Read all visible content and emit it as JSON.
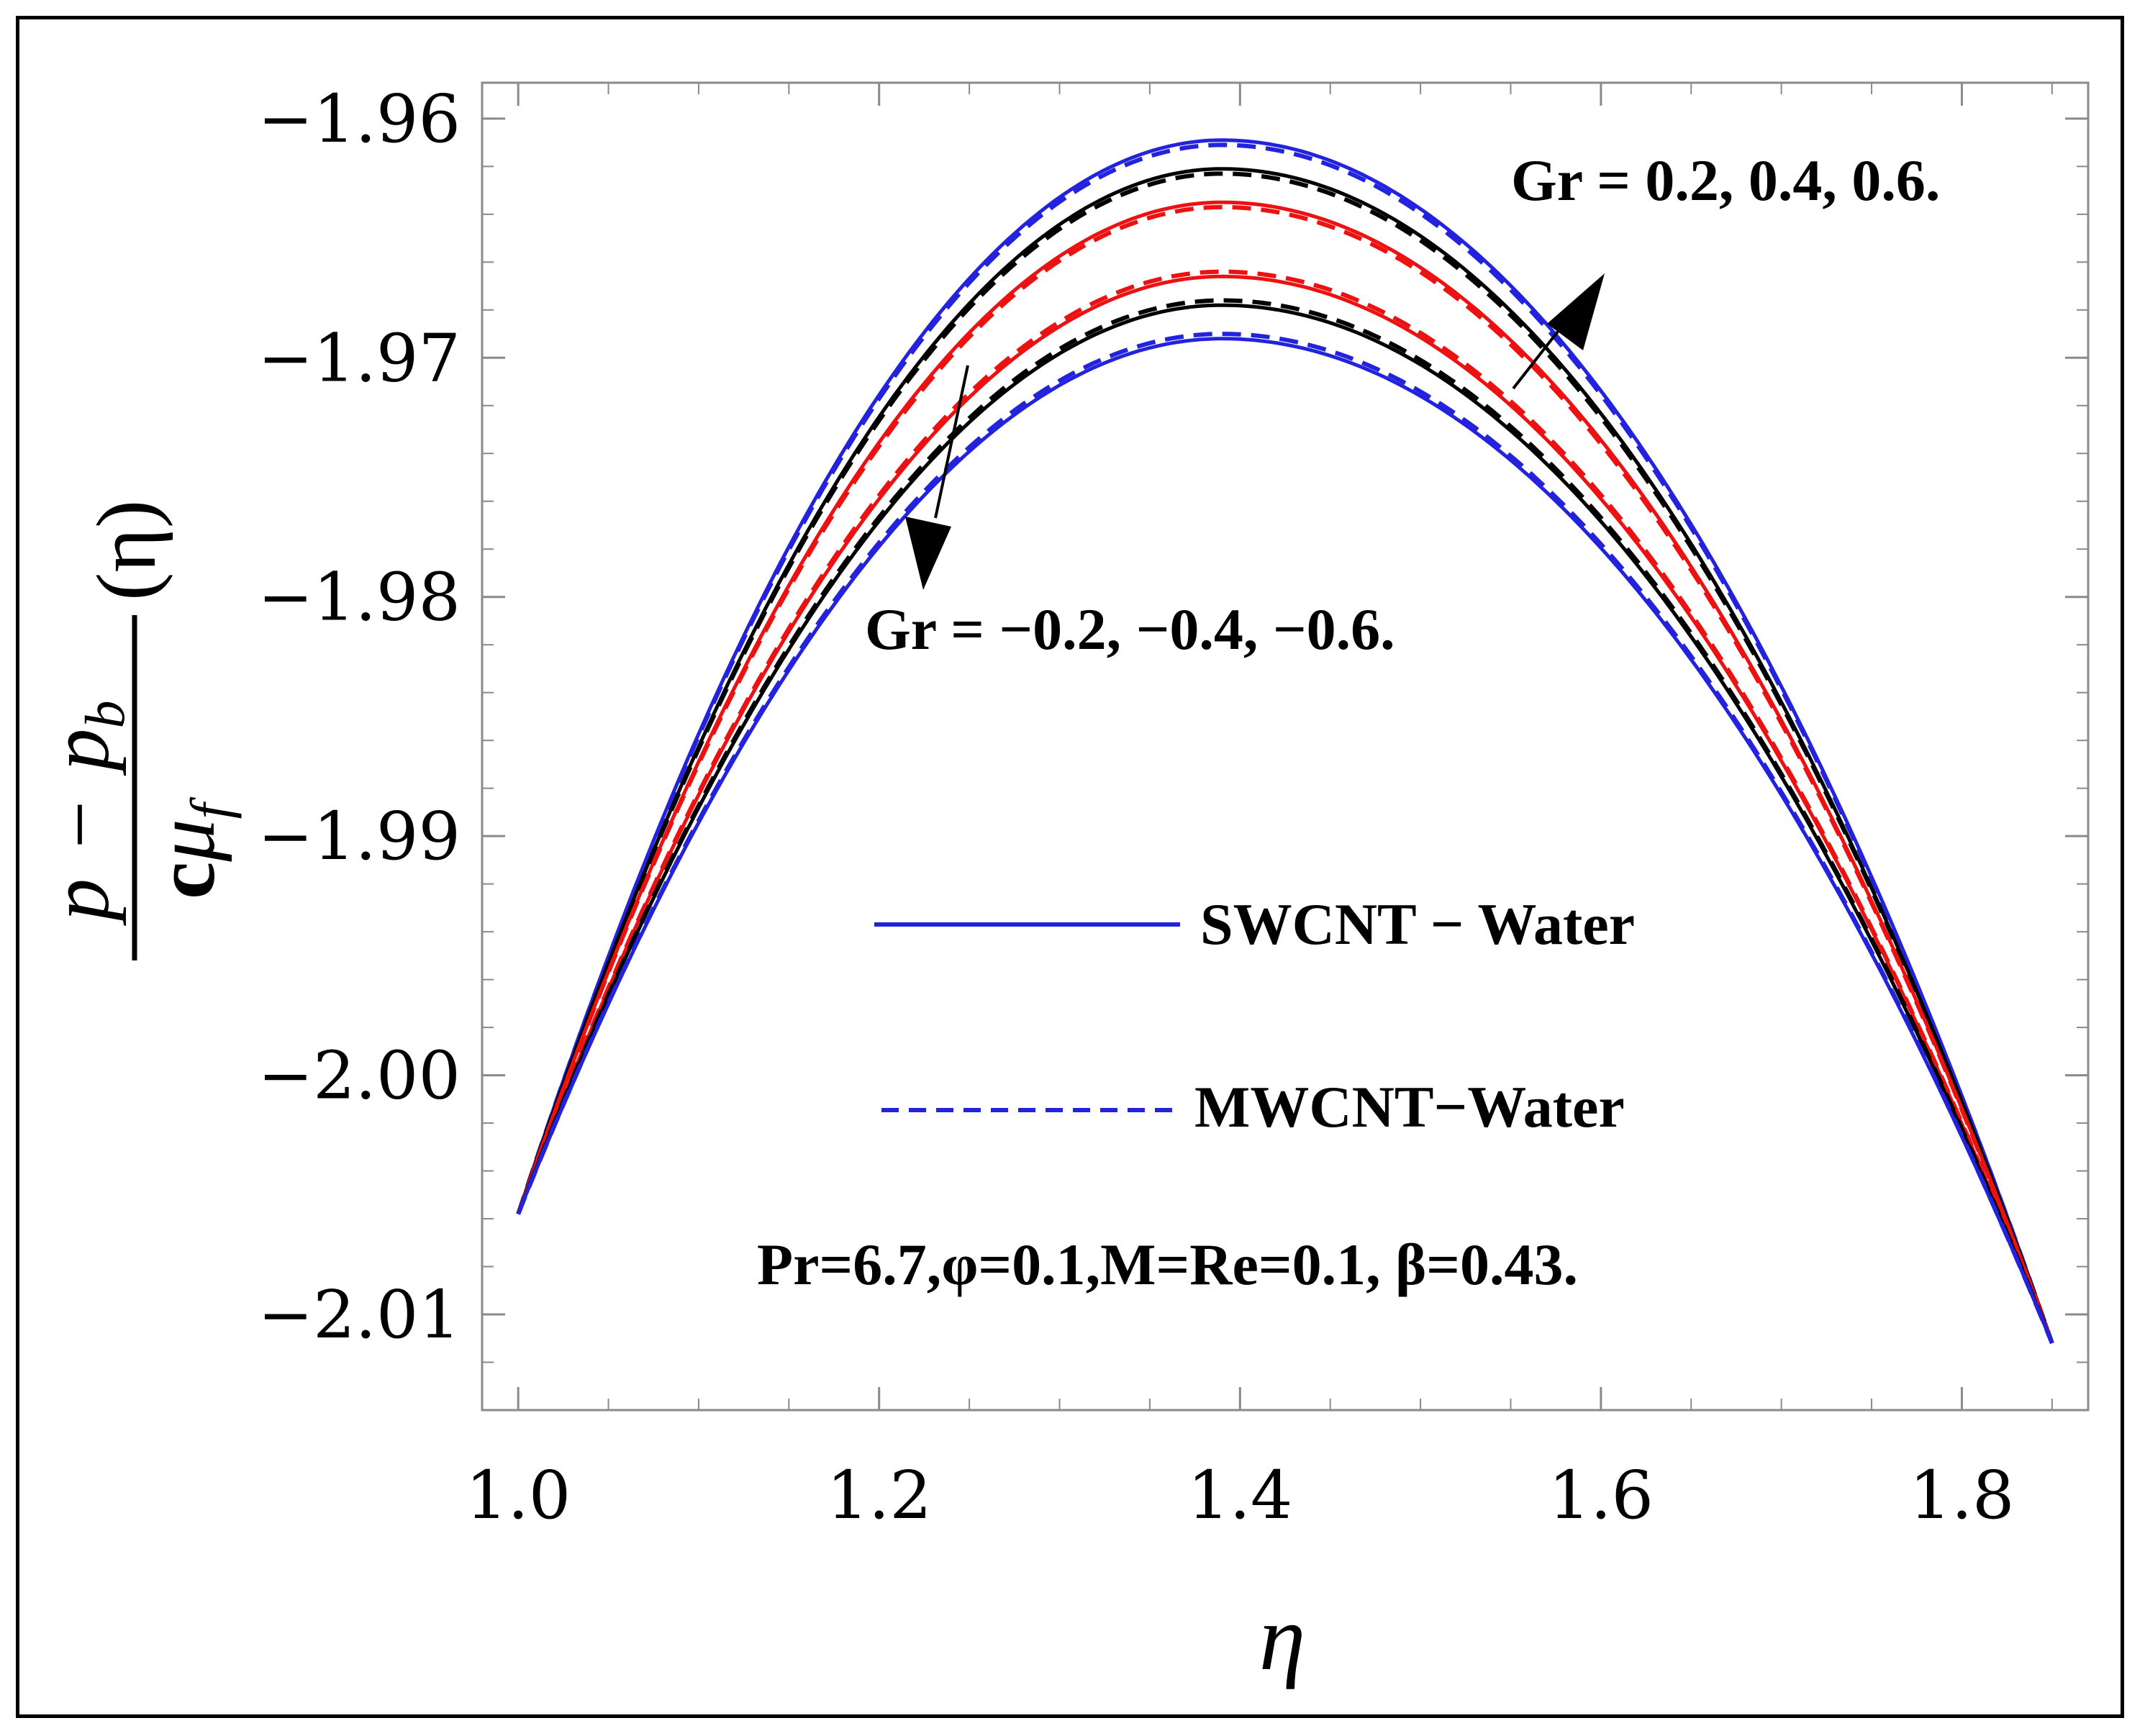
{
  "chart_data": {
    "type": "line",
    "title": "",
    "xlabel": "η",
    "ylabel": "(p − p_b)/(c μ_f) (η)",
    "ylabel_parts": {
      "num_a": "p",
      "num_minus": "−",
      "num_b": "p",
      "num_sub": "b",
      "den_a": "c",
      "den_mu": "μ",
      "den_sub": "f",
      "arg": "(η)"
    },
    "xlim": [
      0.98,
      1.87
    ],
    "ylim": [
      -2.014,
      -1.9585
    ],
    "x_ticks": [
      1.0,
      1.2,
      1.4,
      1.6,
      1.8
    ],
    "x_tick_labels": [
      "1.0",
      "1.2",
      "1.4",
      "1.6",
      "1.8"
    ],
    "y_ticks": [
      -1.96,
      -1.97,
      -1.98,
      -1.99,
      -2.0,
      -2.01
    ],
    "y_tick_labels": [
      "−1.96",
      "−1.97",
      "−1.98",
      "−1.99",
      "−2.00",
      "−2.01"
    ],
    "x_minor_step": 0.05,
    "y_minor_step": 0.002,
    "x_range": [
      1.0,
      1.85
    ],
    "curve_model": "endpoints at η=1.0 (−2.0058) and η=1.85 (−2.0112) with peak at η=1.39",
    "start_value": -2.0058,
    "end_value": -2.0112,
    "peak_x": 1.39,
    "series": [
      {
        "name": "Gr=0.6 SWCNT–Water",
        "group": "SWCNT – Water",
        "Gr": 0.6,
        "color": "#2323dd",
        "style": "solid",
        "peak": -1.9609
      },
      {
        "name": "Gr=0.6 MWCNT–Water",
        "group": "MWCNT−Water",
        "Gr": 0.6,
        "color": "#2323dd",
        "style": "dashed",
        "peak": -1.9611
      },
      {
        "name": "Gr=0.4 SWCNT–Water",
        "group": "SWCNT – Water",
        "Gr": 0.4,
        "color": "#000000",
        "style": "solid",
        "peak": -1.9621
      },
      {
        "name": "Gr=0.4 MWCNT–Water",
        "group": "MWCNT−Water",
        "Gr": 0.4,
        "color": "#000000",
        "style": "dashed",
        "peak": -1.9623
      },
      {
        "name": "Gr=0.2 SWCNT–Water",
        "group": "SWCNT – Water",
        "Gr": 0.2,
        "color": "#ee1111",
        "style": "solid",
        "peak": -1.9635
      },
      {
        "name": "Gr=0.2 MWCNT–Water",
        "group": "MWCNT−Water",
        "Gr": 0.2,
        "color": "#ee1111",
        "style": "dashed",
        "peak": -1.9637
      },
      {
        "name": "Gr=−0.2 SWCNT–Water",
        "group": "SWCNT – Water",
        "Gr": -0.2,
        "color": "#ee1111",
        "style": "solid",
        "peak": -1.9666
      },
      {
        "name": "Gr=−0.2 MWCNT–Water",
        "group": "MWCNT−Water",
        "Gr": -0.2,
        "color": "#ee1111",
        "style": "dashed",
        "peak": -1.9664
      },
      {
        "name": "Gr=−0.4 SWCNT–Water",
        "group": "SWCNT – Water",
        "Gr": -0.4,
        "color": "#000000",
        "style": "solid",
        "peak": -1.9678
      },
      {
        "name": "Gr=−0.4 MWCNT–Water",
        "group": "MWCNT−Water",
        "Gr": -0.4,
        "color": "#000000",
        "style": "dashed",
        "peak": -1.9676
      },
      {
        "name": "Gr=−0.6 SWCNT–Water",
        "group": "SWCNT – Water",
        "Gr": -0.6,
        "color": "#2323dd",
        "style": "solid",
        "peak": -1.9692
      },
      {
        "name": "Gr=−0.6 MWCNT–Water",
        "group": "MWCNT−Water",
        "Gr": -0.6,
        "color": "#2323dd",
        "style": "dashed",
        "peak": -1.969
      }
    ],
    "legend": [
      {
        "label": "SWCNT − Water",
        "color": "#2323dd",
        "style": "solid"
      },
      {
        "label": "MWCNT−Water",
        "color": "#2323dd",
        "style": "dashed"
      }
    ],
    "legend_position": "center",
    "annotations": {
      "gr_positive": "Gr = 0.2, 0.4, 0.6.",
      "gr_negative": "Gr = −0.2, −0.4, −0.6.",
      "params": "Pr=6.7,φ=0.1,M=Re=0.1, β=0.43."
    }
  }
}
